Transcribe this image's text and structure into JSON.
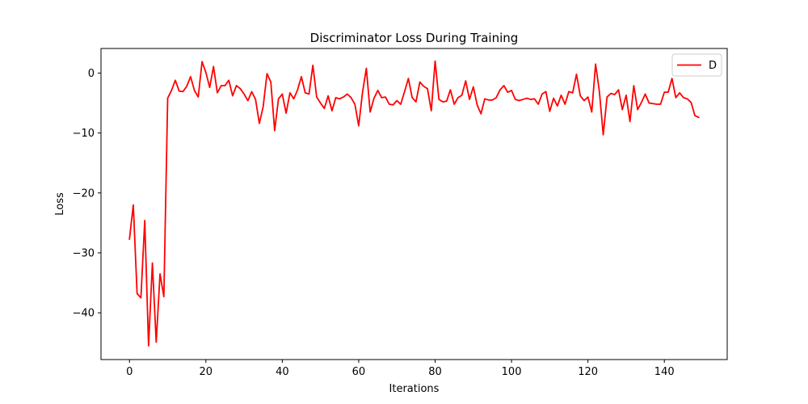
{
  "chart_data": {
    "type": "line",
    "title": "Discriminator Loss During Training",
    "xlabel": "Iterations",
    "ylabel": "Loss",
    "xlim": [
      -7.45,
      156.45
    ],
    "ylim": [
      -47.8,
      4.1
    ],
    "xticks": [
      0,
      20,
      40,
      60,
      80,
      100,
      120,
      140
    ],
    "yticks": [
      0,
      -10,
      -20,
      -30,
      -40
    ],
    "xtick_labels": [
      "0",
      "20",
      "40",
      "60",
      "80",
      "100",
      "120",
      "140"
    ],
    "ytick_labels": [
      "0",
      "−10",
      "−20",
      "−30",
      "−40"
    ],
    "grid": false,
    "legend_position": "top-right",
    "series": [
      {
        "name": "D",
        "color": "#ff0000",
        "x": [
          0,
          1,
          2,
          3,
          4,
          5,
          6,
          7,
          8,
          9,
          10,
          11,
          12,
          13,
          14,
          15,
          16,
          17,
          18,
          19,
          20,
          21,
          22,
          23,
          24,
          25,
          26,
          27,
          28,
          29,
          30,
          31,
          32,
          33,
          34,
          35,
          36,
          37,
          38,
          39,
          40,
          41,
          42,
          43,
          44,
          45,
          46,
          47,
          48,
          49,
          50,
          51,
          52,
          53,
          54,
          55,
          56,
          57,
          58,
          59,
          60,
          61,
          62,
          63,
          64,
          65,
          66,
          67,
          68,
          69,
          70,
          71,
          72,
          73,
          74,
          75,
          76,
          77,
          78,
          79,
          80,
          81,
          82,
          83,
          84,
          85,
          86,
          87,
          88,
          89,
          90,
          91,
          92,
          93,
          94,
          95,
          96,
          97,
          98,
          99,
          100,
          101,
          102,
          103,
          104,
          105,
          106,
          107,
          108,
          109,
          110,
          111,
          112,
          113,
          114,
          115,
          116,
          117,
          118,
          119,
          120,
          121,
          122,
          123,
          124,
          125,
          126,
          127,
          128,
          129,
          130,
          131,
          132,
          133,
          134,
          135,
          136,
          137,
          138,
          139,
          140,
          141,
          142,
          143,
          144,
          145,
          146,
          147,
          148,
          149
        ],
        "y": [
          -27.7,
          -22.0,
          -36.8,
          -37.5,
          -24.6,
          -45.5,
          -31.7,
          -44.9,
          -33.5,
          -37.3,
          -4.2,
          -2.9,
          -1.2,
          -3.0,
          -3.1,
          -2.2,
          -0.6,
          -2.9,
          -4.0,
          1.9,
          0.1,
          -2.4,
          1.1,
          -3.3,
          -2.1,
          -2.1,
          -1.2,
          -3.8,
          -2.1,
          -2.6,
          -3.5,
          -4.6,
          -3.1,
          -4.4,
          -8.4,
          -5.6,
          -0.1,
          -1.5,
          -9.6,
          -4.3,
          -3.5,
          -6.7,
          -3.3,
          -4.3,
          -2.8,
          -0.6,
          -3.3,
          -3.5,
          1.3,
          -4.0,
          -5.0,
          -5.9,
          -3.8,
          -6.3,
          -4.1,
          -4.3,
          -4.0,
          -3.5,
          -4.1,
          -5.2,
          -8.8,
          -3.2,
          0.8,
          -6.5,
          -4.2,
          -2.9,
          -4.1,
          -4.0,
          -5.2,
          -5.3,
          -4.6,
          -5.2,
          -3.1,
          -0.9,
          -4.1,
          -4.8,
          -1.5,
          -2.2,
          -2.6,
          -6.3,
          2.0,
          -4.4,
          -4.8,
          -4.7,
          -2.8,
          -5.2,
          -4.1,
          -3.7,
          -1.3,
          -4.4,
          -2.3,
          -5.3,
          -6.8,
          -4.3,
          -4.5,
          -4.5,
          -4.1,
          -2.8,
          -2.1,
          -3.2,
          -2.9,
          -4.4,
          -4.6,
          -4.4,
          -4.2,
          -4.4,
          -4.3,
          -5.2,
          -3.5,
          -3.1,
          -6.4,
          -4.2,
          -5.5,
          -3.7,
          -5.2,
          -3.1,
          -3.3,
          -0.2,
          -3.8,
          -4.6,
          -4.0,
          -6.5,
          1.5,
          -3.1,
          -10.3,
          -4.0,
          -3.4,
          -3.6,
          -2.8,
          -6.1,
          -3.7,
          -8.1,
          -2.1,
          -6.1,
          -4.9,
          -3.5,
          -5.0,
          -5.1,
          -5.2,
          -5.2,
          -3.2,
          -3.2,
          -0.9,
          -4.1,
          -3.3,
          -4.1,
          -4.3,
          -4.9,
          -7.1,
          -7.4
        ]
      }
    ]
  }
}
